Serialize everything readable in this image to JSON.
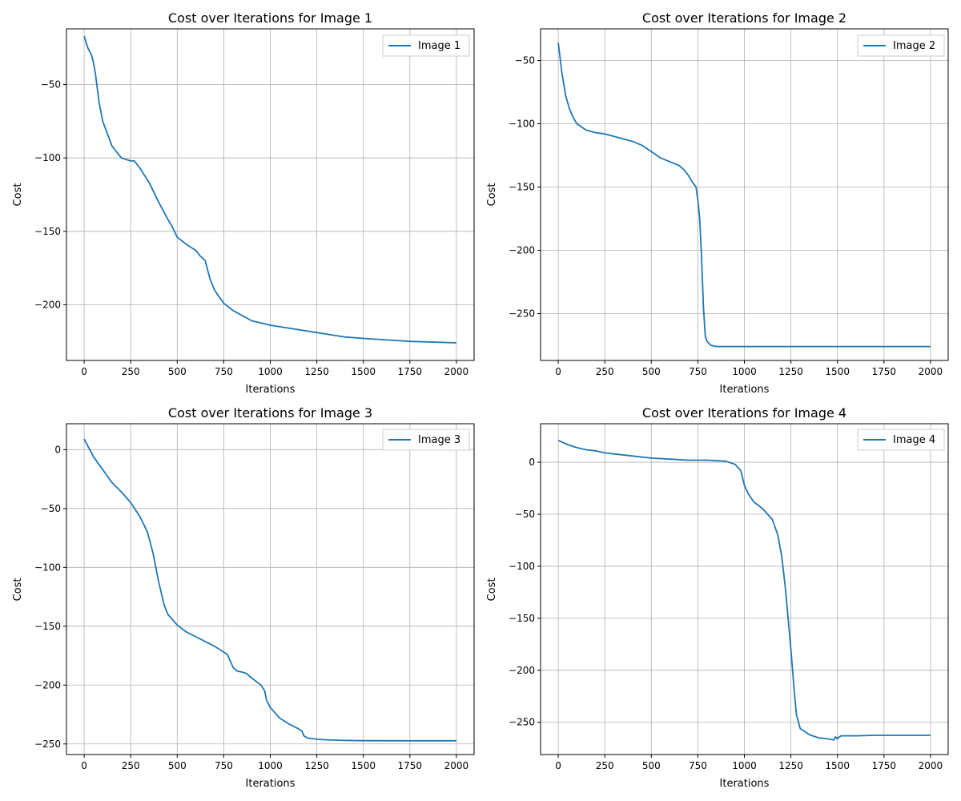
{
  "chart_data": [
    {
      "type": "line",
      "title": "Cost over Iterations for Image 1",
      "xlabel": "Iterations",
      "ylabel": "Cost",
      "xlim": [
        -95,
        2095
      ],
      "ylim": [
        -238,
        -12
      ],
      "xticks": [
        0,
        250,
        500,
        750,
        1000,
        1250,
        1500,
        1750,
        2000
      ],
      "yticks": [
        -50,
        -100,
        -150,
        -200
      ],
      "grid": true,
      "legend_position": "top-right",
      "series": [
        {
          "name": "Image 1",
          "color": "#1f77b4",
          "x": [
            0,
            20,
            40,
            50,
            60,
            80,
            100,
            150,
            200,
            250,
            270,
            300,
            350,
            400,
            450,
            470,
            500,
            550,
            600,
            625,
            650,
            675,
            700,
            750,
            800,
            900,
            1000,
            1250,
            1300,
            1350,
            1400,
            1500,
            1750,
            2000
          ],
          "y": [
            -17,
            -25,
            -30,
            -35,
            -42,
            -62,
            -75,
            -92,
            -100,
            -102,
            -102,
            -107,
            -117,
            -130,
            -142,
            -146,
            -154,
            -159,
            -163,
            -167,
            -170,
            -182,
            -190,
            -199,
            -204,
            -211,
            -214,
            -219,
            -220,
            -221,
            -222,
            -223,
            -225,
            -226
          ]
        }
      ]
    },
    {
      "type": "line",
      "title": "Cost over Iterations for Image 2",
      "xlabel": "Iterations",
      "ylabel": "Cost",
      "xlim": [
        -95,
        2095
      ],
      "ylim": [
        -287,
        -25
      ],
      "xticks": [
        0,
        250,
        500,
        750,
        1000,
        1250,
        1500,
        1750,
        2000
      ],
      "yticks": [
        -50,
        -100,
        -150,
        -200,
        -250
      ],
      "grid": true,
      "legend_position": "top-right",
      "series": [
        {
          "name": "Image 2",
          "color": "#1f77b4",
          "x": [
            0,
            20,
            40,
            60,
            80,
            100,
            150,
            200,
            250,
            300,
            350,
            400,
            450,
            500,
            550,
            600,
            650,
            680,
            700,
            720,
            740,
            750,
            760,
            770,
            780,
            790,
            800,
            820,
            850,
            900,
            1000,
            1500,
            2000
          ],
          "y": [
            -36,
            -60,
            -78,
            -88,
            -95,
            -100,
            -105,
            -107,
            -108,
            -110,
            -112,
            -114,
            -117,
            -122,
            -127,
            -130,
            -133,
            -137,
            -141,
            -146,
            -150,
            -160,
            -175,
            -205,
            -245,
            -268,
            -272,
            -275,
            -276,
            -276,
            -276,
            -276,
            -276
          ]
        }
      ]
    },
    {
      "type": "line",
      "title": "Cost over Iterations for Image 3",
      "xlabel": "Iterations",
      "ylabel": "Cost",
      "xlim": [
        -95,
        2095
      ],
      "ylim": [
        -259,
        22
      ],
      "xticks": [
        0,
        250,
        500,
        750,
        1000,
        1250,
        1500,
        1750,
        2000
      ],
      "yticks": [
        0,
        -50,
        -100,
        -150,
        -200,
        -250
      ],
      "grid": true,
      "legend_position": "top-right",
      "series": [
        {
          "name": "Image 3",
          "color": "#1f77b4",
          "x": [
            0,
            50,
            100,
            150,
            200,
            250,
            300,
            340,
            370,
            400,
            430,
            450,
            500,
            550,
            600,
            650,
            700,
            750,
            770,
            800,
            820,
            850,
            870,
            900,
            950,
            970,
            980,
            1000,
            1050,
            1100,
            1150,
            1170,
            1180,
            1200,
            1250,
            1300,
            1400,
            1500,
            1750,
            2000
          ],
          "y": [
            9,
            -6,
            -17,
            -28,
            -36,
            -45,
            -57,
            -70,
            -88,
            -112,
            -132,
            -140,
            -149,
            -155,
            -159,
            -163,
            -167,
            -172,
            -174,
            -185,
            -188,
            -189,
            -190,
            -194,
            -200,
            -205,
            -213,
            -219,
            -228,
            -233,
            -237,
            -239,
            -243,
            -245,
            -246,
            -246.5,
            -247,
            -247.2,
            -247.3,
            -247.3
          ]
        }
      ]
    },
    {
      "type": "line",
      "title": "Cost over Iterations for Image 4",
      "xlabel": "Iterations",
      "ylabel": "Cost",
      "xlim": [
        -95,
        2095
      ],
      "ylim": [
        -281,
        37
      ],
      "xticks": [
        0,
        250,
        500,
        750,
        1000,
        1250,
        1500,
        1750,
        2000
      ],
      "yticks": [
        0,
        -50,
        -100,
        -150,
        -200,
        -250
      ],
      "grid": true,
      "legend_position": "top-right",
      "series": [
        {
          "name": "Image 4",
          "color": "#1f77b4",
          "x": [
            0,
            50,
            100,
            150,
            200,
            250,
            300,
            400,
            500,
            600,
            700,
            800,
            900,
            950,
            980,
            1000,
            1020,
            1050,
            1100,
            1150,
            1180,
            1200,
            1220,
            1250,
            1270,
            1280,
            1300,
            1350,
            1400,
            1450,
            1480,
            1490,
            1500,
            1510,
            1520,
            1540,
            1600,
            1700,
            1800,
            2000
          ],
          "y": [
            21,
            17,
            14,
            12,
            11,
            9,
            8,
            6,
            4,
            3,
            2,
            2,
            1,
            -2,
            -8,
            -22,
            -30,
            -38,
            -45,
            -55,
            -70,
            -90,
            -120,
            -180,
            -225,
            -243,
            -256,
            -262,
            -265,
            -266,
            -267,
            -264,
            -266,
            -264,
            -263,
            -263,
            -263,
            -262.5,
            -262.5,
            -262.5
          ]
        }
      ]
    }
  ]
}
